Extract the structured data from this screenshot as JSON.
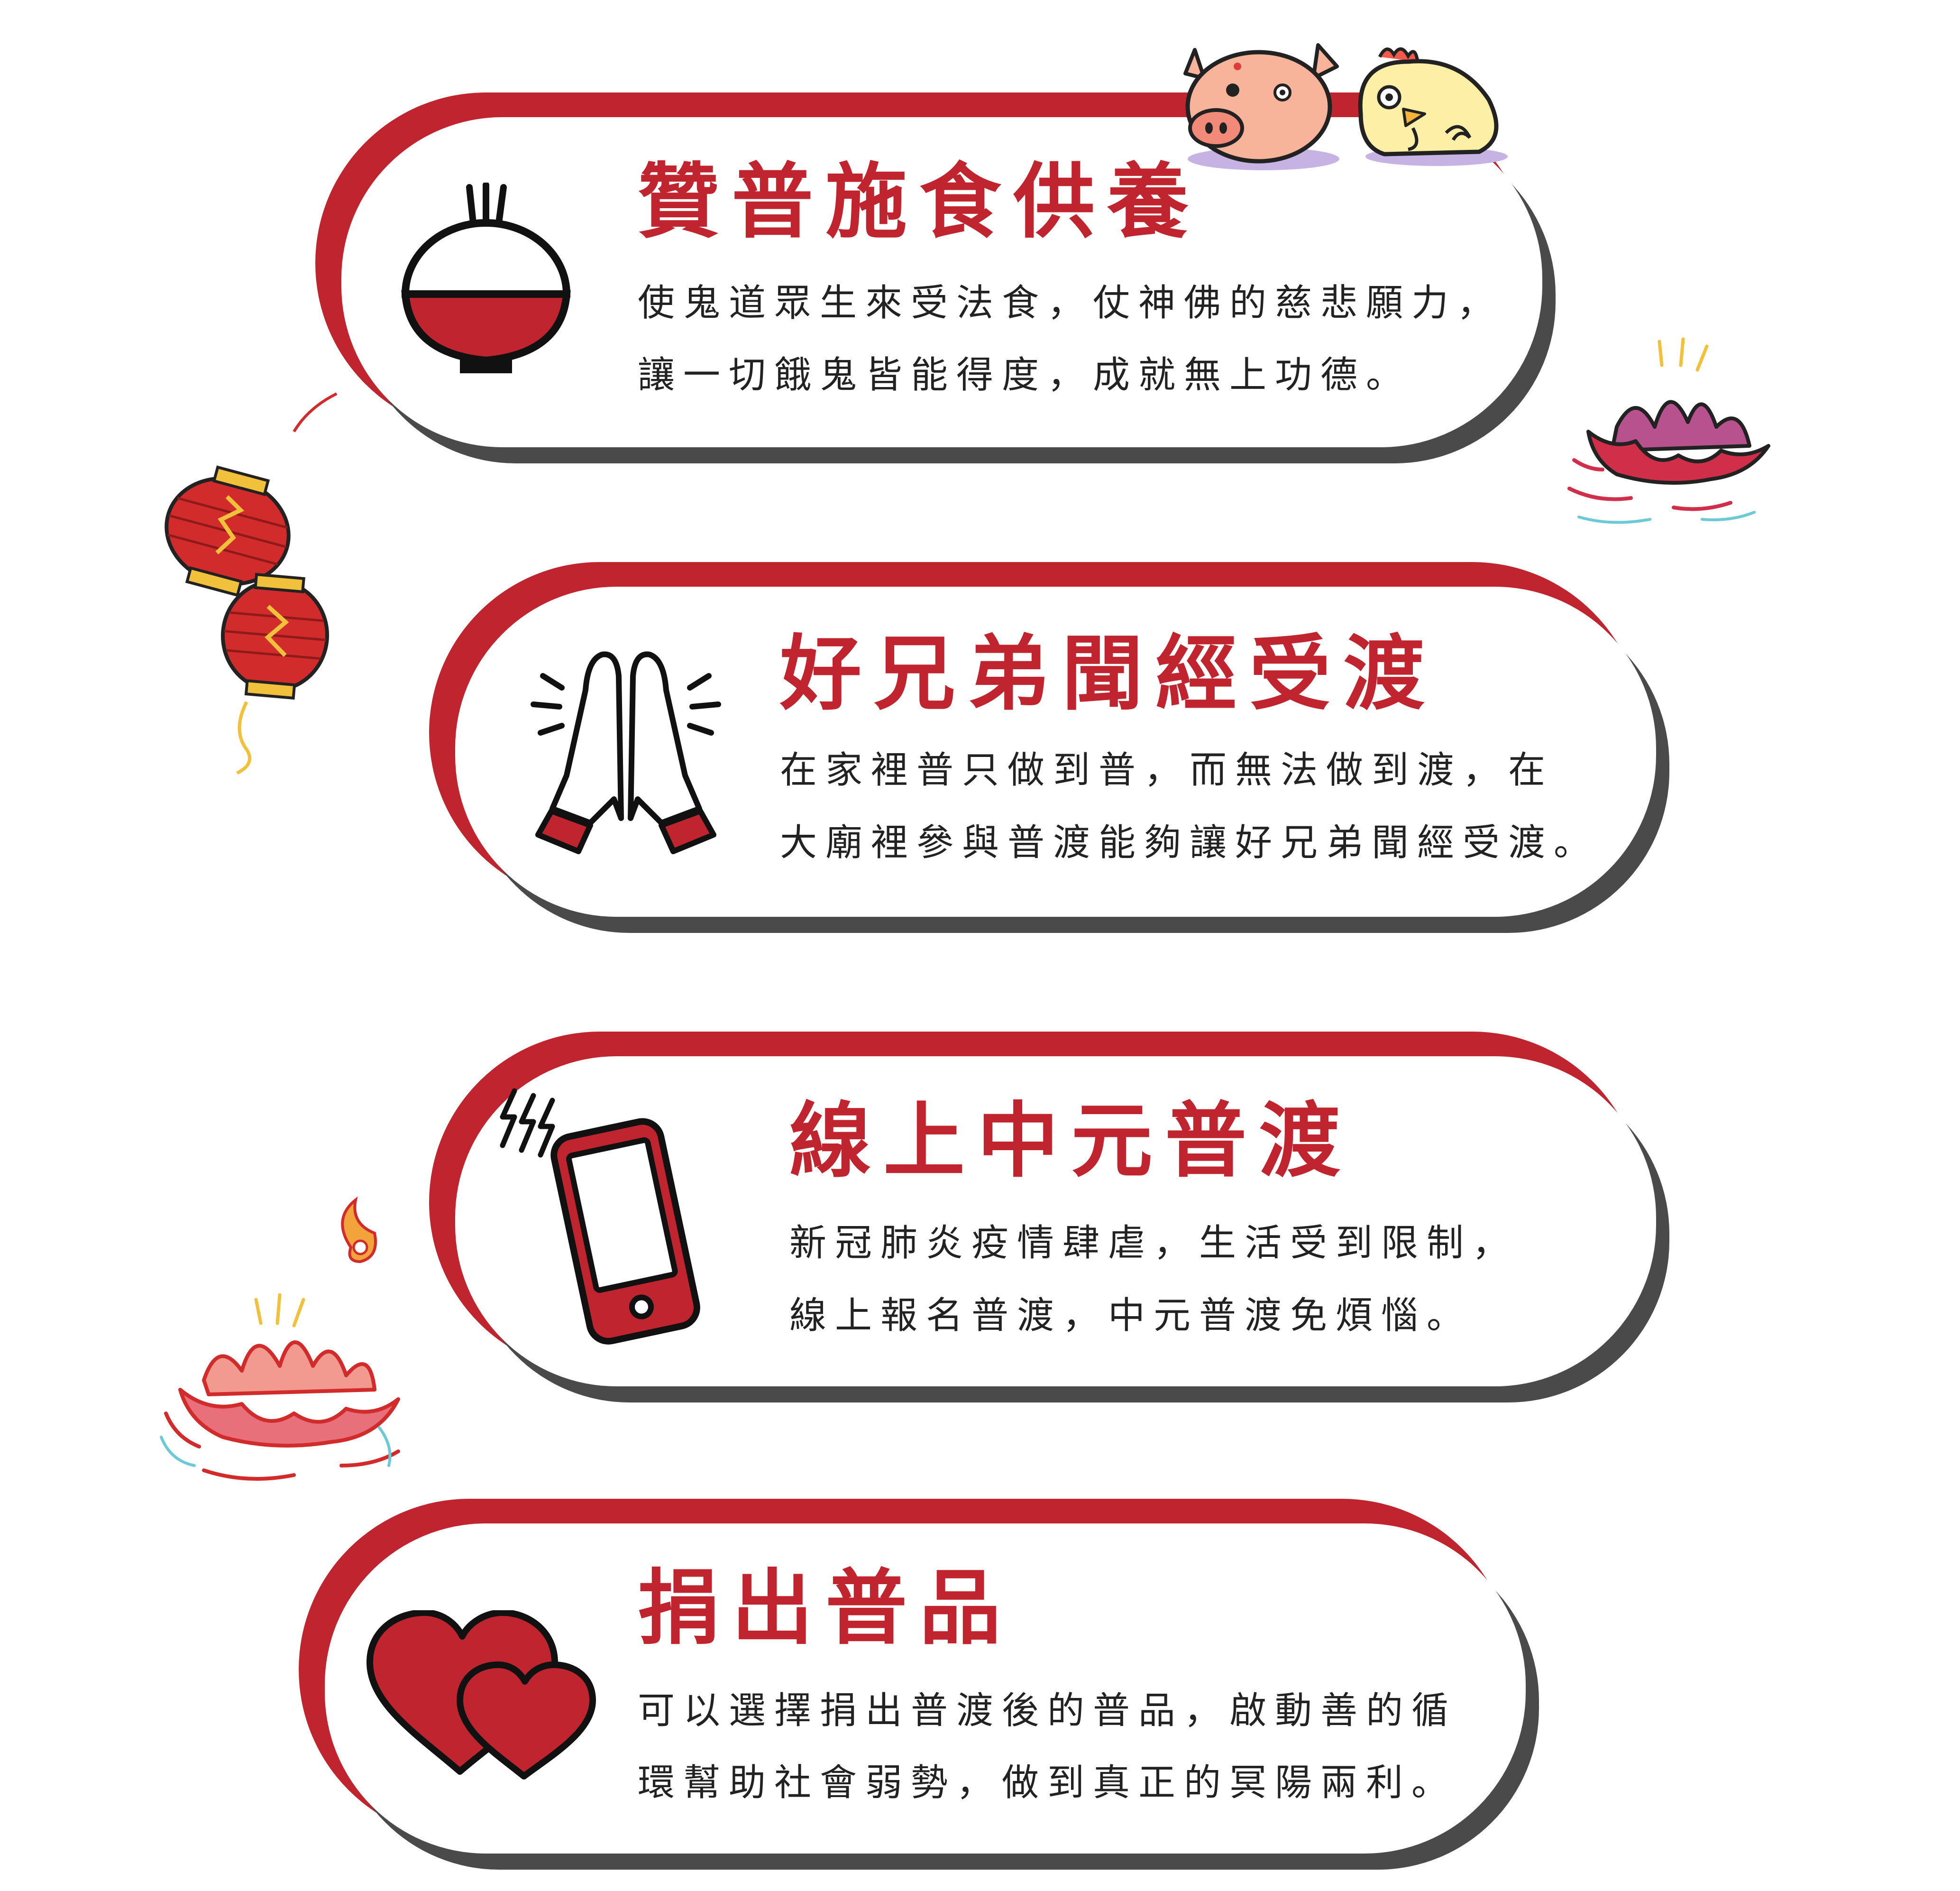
{
  "colors": {
    "accent": "#c0242e",
    "card": "#ffffff",
    "shadow": "#4a4a4a",
    "text": "#222222"
  },
  "cards": [
    {
      "icon": "rice-bowl-icon",
      "title": "贊普施食供養",
      "lines": [
        "使鬼道眾生來受法食，仗神佛的慈悲願力，",
        "讓一切餓鬼皆能得度，成就無上功德。"
      ]
    },
    {
      "icon": "praying-hands-icon",
      "title": "好兄弟聞經受渡",
      "lines": [
        "在家裡普只做到普，而無法做到渡，在",
        "大廟裡參與普渡能夠讓好兄弟聞經受渡。"
      ]
    },
    {
      "icon": "mobile-phone-icon",
      "title": "線上中元普渡",
      "lines": [
        "新冠肺炎疫情肆虐，生活受到限制，",
        "線上報名普渡，中元普渡免煩惱。"
      ]
    },
    {
      "icon": "hearts-icon",
      "title": "捐出普品",
      "lines": [
        "可以選擇捐出普渡後的普品，啟動善的循",
        "環幫助社會弱勢，做到真正的冥陽兩利。"
      ]
    }
  ],
  "decorations": [
    "pig-icon",
    "chicken-icon",
    "red-lantern-icon",
    "lotus-icon",
    "lotus-flame-icon"
  ]
}
